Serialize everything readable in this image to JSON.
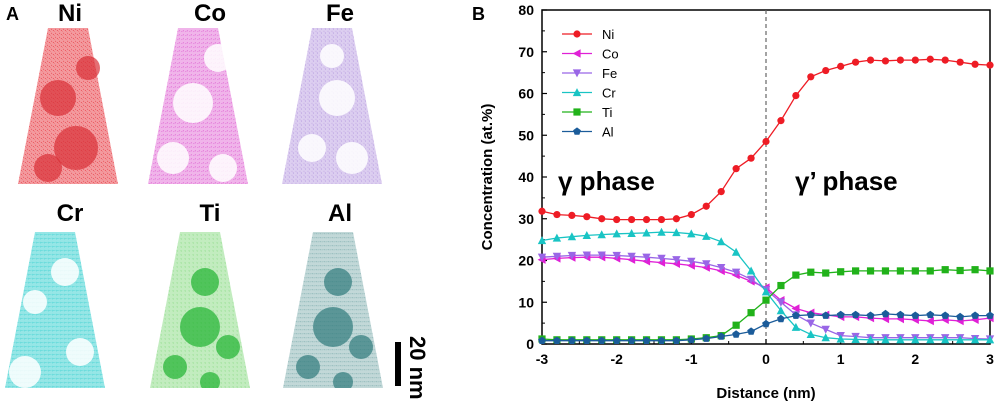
{
  "panel_a": {
    "letter": "A",
    "elements": [
      {
        "label": "Ni",
        "color": "#e8474f",
        "precip_color": "#d83038"
      },
      {
        "label": "Co",
        "color": "#e376d8",
        "precip_color": "#ffffff"
      },
      {
        "label": "Fe",
        "color": "#bfa6e3",
        "precip_color": "#ffffff"
      },
      {
        "label": "Cr",
        "color": "#3fd1d1",
        "precip_color": "#ffffff"
      },
      {
        "label": "Ti",
        "color": "#8fdc8a",
        "precip_color": "#1fb330"
      },
      {
        "label": "Al",
        "color": "#8fb7b8",
        "precip_color": "#2f7b7c"
      }
    ],
    "scale_bar_label": "20 nm"
  },
  "panel_b": {
    "letter": "B",
    "annotations": {
      "left": "γ phase",
      "right": "γ’ phase"
    }
  },
  "chart_data": {
    "type": "line",
    "title": "",
    "xlabel": "Distance (nm)",
    "ylabel": "Concentration (at.%)",
    "xlim": [
      -3,
      3
    ],
    "ylim": [
      0,
      80
    ],
    "xticks": [
      "-3",
      "-2",
      "-1",
      "0",
      "1",
      "2",
      "3"
    ],
    "yticks": [
      "0",
      "10",
      "20",
      "30",
      "40",
      "50",
      "60",
      "70",
      "80"
    ],
    "divider_x": 0,
    "legend_position": "top-left",
    "x": [
      -3.0,
      -2.8,
      -2.6,
      -2.4,
      -2.2,
      -2.0,
      -1.8,
      -1.6,
      -1.4,
      -1.2,
      -1.0,
      -0.8,
      -0.6,
      -0.4,
      -0.2,
      0.0,
      0.2,
      0.4,
      0.6,
      0.8,
      1.0,
      1.2,
      1.4,
      1.6,
      1.8,
      2.0,
      2.2,
      2.4,
      2.6,
      2.8,
      3.0
    ],
    "series": [
      {
        "name": "Ni",
        "color": "#ee1c25",
        "marker": "circle",
        "values": [
          31.8,
          31.0,
          30.8,
          30.5,
          30.0,
          29.8,
          29.8,
          29.8,
          29.8,
          30.0,
          31.0,
          33.0,
          36.5,
          42.0,
          44.5,
          48.5,
          53.5,
          59.5,
          64.0,
          65.5,
          66.5,
          67.5,
          68.0,
          67.8,
          68.0,
          68.0,
          68.2,
          68.0,
          67.5,
          67.0,
          66.8
        ]
      },
      {
        "name": "Co",
        "color": "#e020d6",
        "marker": "triangle-left",
        "values": [
          20.2,
          20.5,
          20.7,
          20.8,
          20.8,
          20.5,
          20.2,
          19.8,
          19.5,
          19.2,
          18.8,
          18.3,
          17.5,
          16.5,
          15.0,
          13.5,
          10.5,
          8.5,
          7.5,
          7.0,
          6.5,
          6.5,
          6.2,
          6.0,
          6.0,
          5.8,
          5.5,
          5.8,
          5.5,
          5.8,
          6.2
        ]
      },
      {
        "name": "Fe",
        "color": "#9966e6",
        "marker": "triangle-down",
        "values": [
          20.8,
          21.0,
          21.2,
          21.3,
          21.3,
          21.2,
          21.0,
          20.8,
          20.5,
          20.2,
          19.8,
          19.2,
          18.3,
          17.2,
          15.5,
          13.0,
          10.0,
          7.0,
          5.0,
          3.5,
          2.0,
          1.8,
          1.5,
          1.5,
          1.5,
          1.5,
          1.5,
          1.5,
          1.5,
          1.3,
          1.2
        ]
      },
      {
        "name": "Cr",
        "color": "#19c4c4",
        "marker": "triangle-up",
        "values": [
          24.8,
          25.4,
          25.7,
          26.0,
          26.2,
          26.4,
          26.5,
          26.6,
          26.8,
          26.7,
          26.4,
          25.8,
          24.5,
          22.0,
          17.5,
          12.5,
          8.0,
          4.0,
          2.3,
          1.5,
          1.2,
          1.1,
          1.0,
          1.0,
          1.0,
          1.0,
          1.0,
          1.0,
          1.0,
          1.0,
          1.0
        ]
      },
      {
        "name": "Ti",
        "color": "#21b21a",
        "marker": "square",
        "values": [
          1.2,
          1.0,
          1.0,
          1.0,
          1.0,
          1.0,
          1.0,
          1.0,
          1.0,
          1.0,
          1.2,
          1.5,
          2.0,
          4.5,
          7.5,
          10.5,
          14.0,
          16.5,
          17.2,
          17.0,
          17.3,
          17.5,
          17.5,
          17.5,
          17.5,
          17.5,
          17.5,
          17.8,
          17.6,
          17.8,
          17.5
        ]
      },
      {
        "name": "Al",
        "color": "#1b5c9a",
        "marker": "pentagon",
        "values": [
          0.8,
          0.8,
          0.8,
          0.8,
          0.8,
          0.8,
          0.8,
          0.8,
          0.8,
          0.8,
          1.0,
          1.3,
          1.8,
          2.3,
          3.0,
          4.8,
          6.0,
          6.8,
          7.0,
          6.8,
          7.0,
          7.0,
          6.8,
          7.2,
          7.0,
          6.8,
          7.0,
          6.8,
          6.5,
          6.8,
          6.8
        ]
      }
    ]
  }
}
